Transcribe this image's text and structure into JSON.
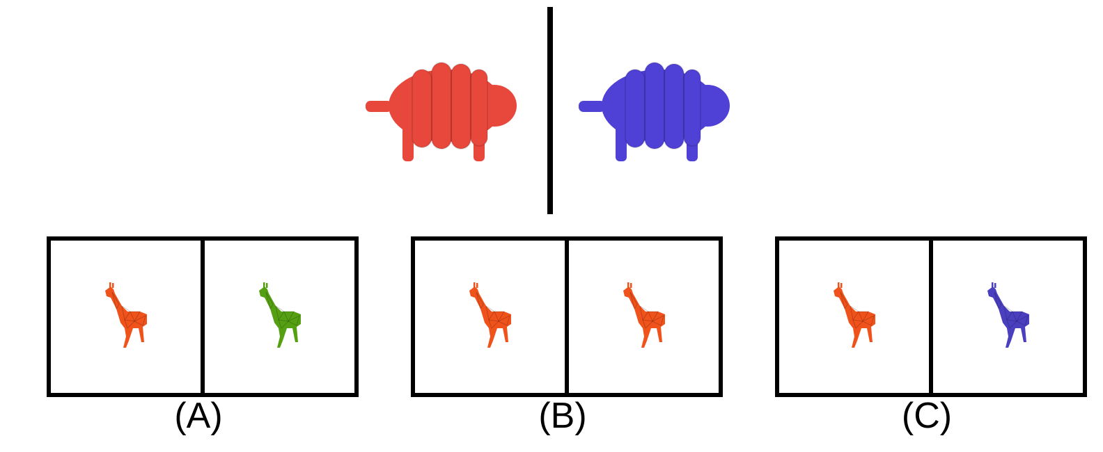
{
  "top": {
    "left_figure": {
      "icon": "sheep-icon",
      "color": "#e8483c"
    },
    "right_figure": {
      "icon": "sheep-icon",
      "color": "#4f40d6"
    }
  },
  "options": [
    {
      "label": "(A)",
      "left_color": "#f0521c",
      "right_color": "#55a012"
    },
    {
      "label": "(B)",
      "left_color": "#f0521c",
      "right_color": "#f0521c"
    },
    {
      "label": "(C)",
      "left_color": "#f0521c",
      "right_color": "#4a3fbf"
    }
  ]
}
